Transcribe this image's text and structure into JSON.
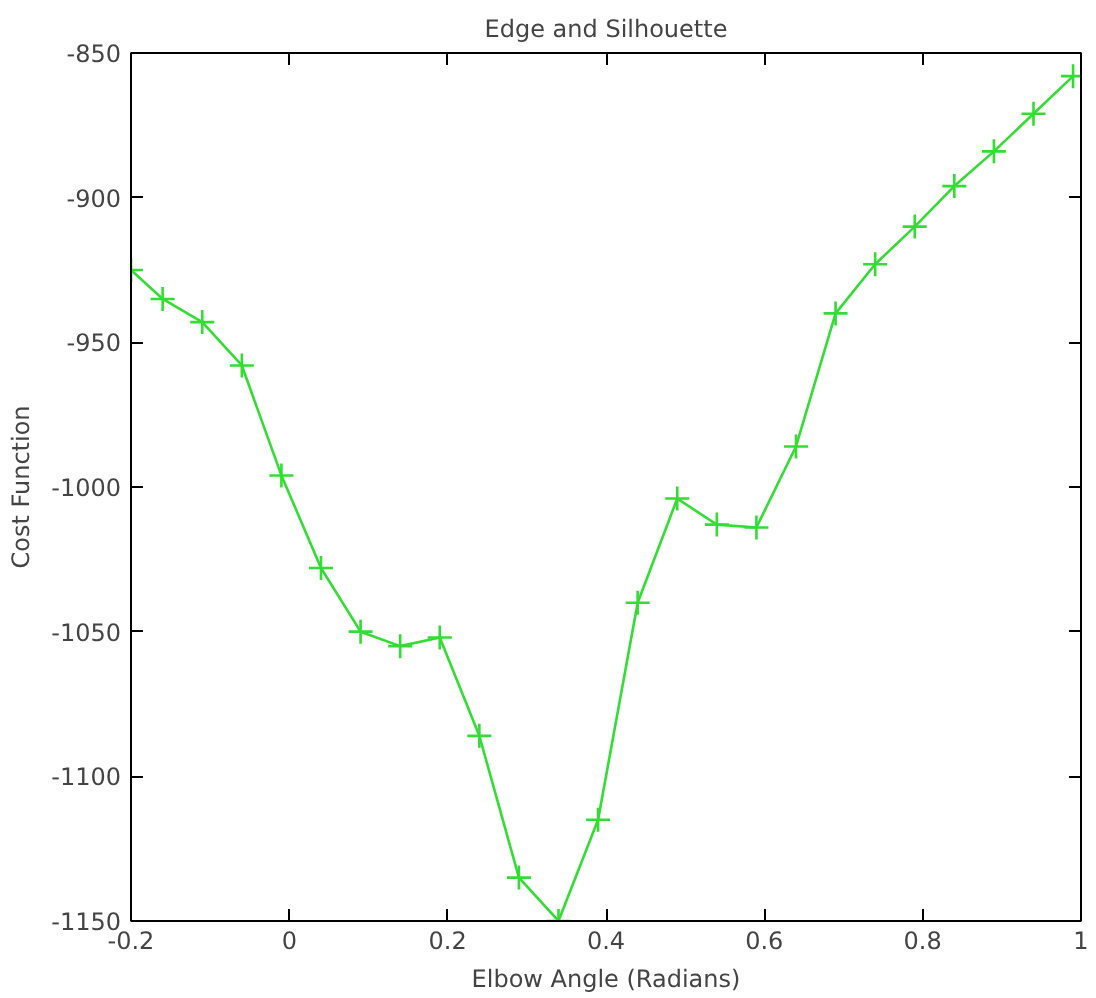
{
  "chart_data": {
    "type": "line",
    "title": "Edge and Silhouette",
    "xlabel": "Elbow Angle (Radians)",
    "ylabel": "Cost Function",
    "x": [
      -0.2,
      -0.16,
      -0.11,
      -0.06,
      -0.01,
      0.04,
      0.09,
      0.14,
      0.19,
      0.24,
      0.29,
      0.34,
      0.39,
      0.44,
      0.49,
      0.54,
      0.59,
      0.64,
      0.69,
      0.74,
      0.79,
      0.84,
      0.89,
      0.94,
      0.99
    ],
    "series": [
      {
        "color": "#33dd33",
        "values": [
          -925,
          -935,
          -943,
          -958,
          -996,
          -1028,
          -1050,
          -1055,
          -1052,
          -1086,
          -1135,
          -1150,
          -1115,
          -1040,
          -1004,
          -1013,
          -1014,
          -986,
          -940,
          -923,
          -910,
          -896,
          -884,
          -871,
          -858
        ]
      }
    ],
    "xlim": [
      -0.2,
      1.0
    ],
    "ylim": [
      -1150,
      -850
    ],
    "xticks": [
      -0.2,
      0,
      0.2,
      0.4,
      0.6,
      0.8,
      1
    ],
    "yticks": [
      -1150,
      -1100,
      -1050,
      -1000,
      -950,
      -900,
      -850
    ],
    "grid": false,
    "marker": "cross",
    "line_style": "solid"
  }
}
